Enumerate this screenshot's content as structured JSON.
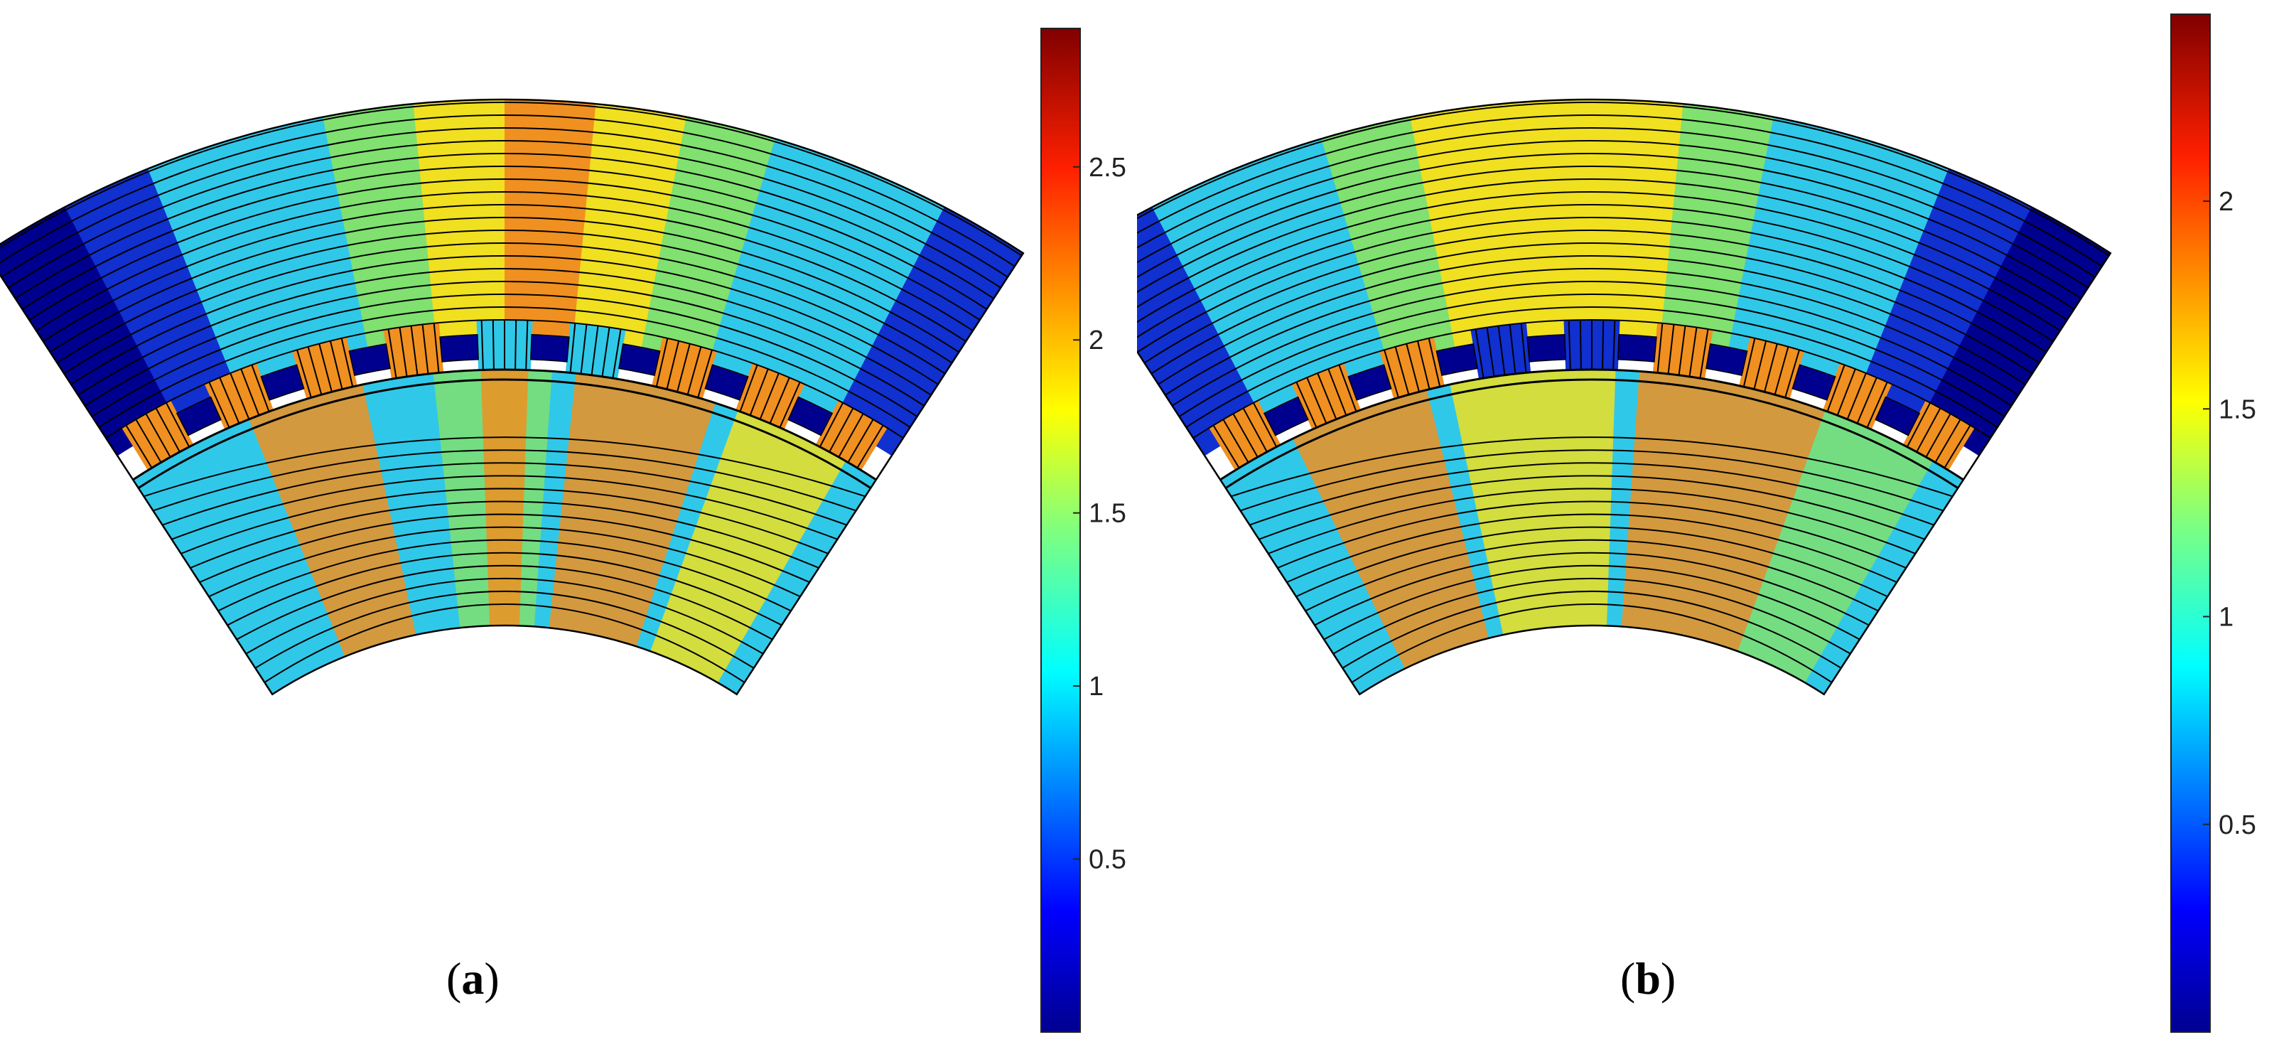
{
  "panels": [
    {
      "id": "a",
      "label": "a",
      "colorbar": {
        "min": 0,
        "max": 2.9,
        "ticks": [
          "0.5",
          "1",
          "1.5",
          "2",
          "2.5"
        ],
        "tick_values": [
          0.5,
          1,
          1.5,
          2,
          2.5
        ]
      }
    },
    {
      "id": "b",
      "label": "b",
      "colorbar": {
        "min": 0,
        "max": 2.45,
        "ticks": [
          "0.5",
          "1",
          "1.5",
          "2"
        ],
        "tick_values": [
          0.5,
          1,
          1.5,
          2
        ]
      }
    }
  ],
  "colormap": "jet",
  "colors": {
    "dark_blue": "#00008f",
    "blue": "#1030d0",
    "cyan": "#30c8e8",
    "green": "#80e070",
    "yellow": "#f0e020",
    "orange": "#f09020",
    "red": "#d02010",
    "dark_red": "#7a0000",
    "flux_line": "#000000"
  }
}
